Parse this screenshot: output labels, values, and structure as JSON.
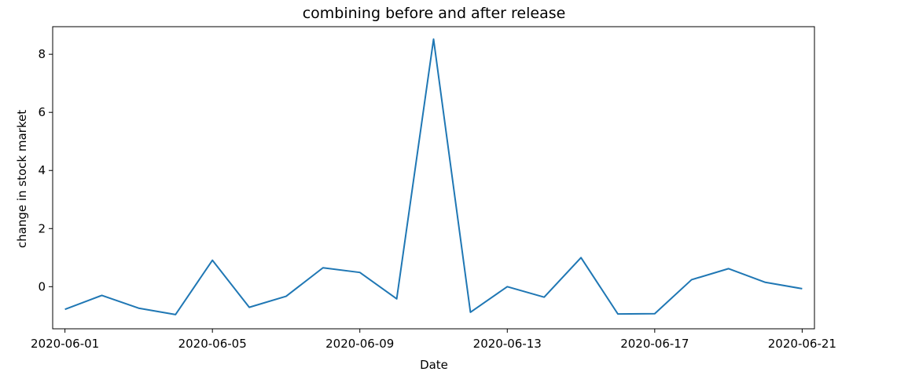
{
  "chart_data": {
    "type": "line",
    "title": "combining before and after release",
    "xlabel": "Date",
    "ylabel": "change in stock market",
    "x_type": "date",
    "xlim": [
      "2020-05-31T16:00",
      "2020-06-21T08:00"
    ],
    "ylim": [
      -1.45,
      8.95
    ],
    "x_ticks": [
      "2020-06-01",
      "2020-06-05",
      "2020-06-09",
      "2020-06-13",
      "2020-06-17",
      "2020-06-21"
    ],
    "y_ticks": [
      0,
      2,
      4,
      6,
      8
    ],
    "grid": false,
    "legend": "none",
    "series": [
      {
        "color": "#1f77b4",
        "x": [
          "2020-06-01",
          "2020-06-02",
          "2020-06-03",
          "2020-06-04",
          "2020-06-05",
          "2020-06-06",
          "2020-06-07",
          "2020-06-08",
          "2020-06-09",
          "2020-06-10",
          "2020-06-11",
          "2020-06-12",
          "2020-06-13",
          "2020-06-14",
          "2020-06-15",
          "2020-06-16",
          "2020-06-17",
          "2020-06-18",
          "2020-06-19",
          "2020-06-20",
          "2020-06-21"
        ],
        "values": [
          -0.78,
          -0.3,
          -0.74,
          -0.96,
          0.91,
          -0.71,
          -0.33,
          0.65,
          0.49,
          -0.42,
          8.52,
          -0.88,
          0.0,
          -0.36,
          1.0,
          -0.94,
          -0.93,
          0.24,
          0.62,
          0.15,
          -0.07
        ]
      }
    ]
  }
}
